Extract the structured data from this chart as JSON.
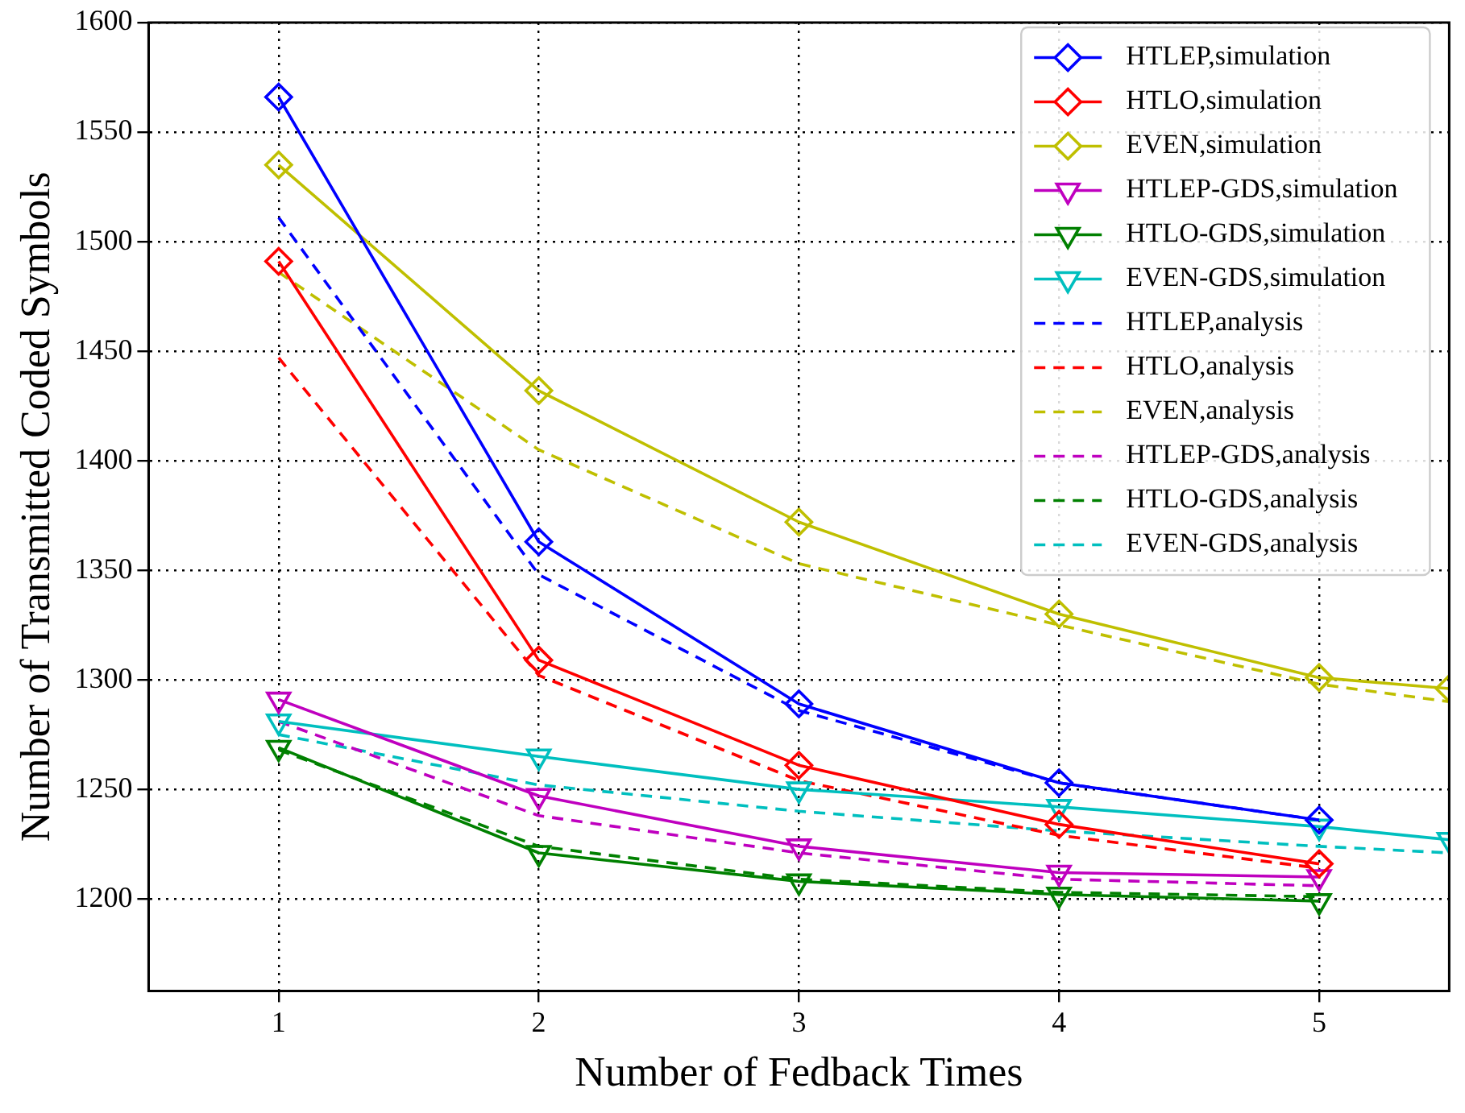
{
  "chart_data": {
    "type": "line",
    "xlabel": "Number of Fedback Times",
    "ylabel": "Number of Transmitted Coded Symbols",
    "xlim": [
      0.5,
      5.5
    ],
    "xticks": [
      1,
      2,
      3,
      4,
      5
    ],
    "ylim": [
      1158,
      1600
    ],
    "yticks": [
      1200,
      1250,
      1300,
      1350,
      1400,
      1450,
      1500,
      1550,
      1600
    ],
    "grid": true,
    "legend": "top right",
    "x": [
      1,
      2,
      3,
      4,
      5
    ],
    "series": [
      {
        "name": "HTLEP,simulation",
        "color": "#0000ff",
        "marker": "diamond",
        "line_style": "solid",
        "values": [
          1566,
          1363,
          1289,
          1253,
          1236
        ]
      },
      {
        "name": "HTLO,simulation",
        "color": "#ff0000",
        "marker": "diamond",
        "line_style": "solid",
        "values": [
          1491,
          1309,
          1261,
          1234,
          1216
        ]
      },
      {
        "name": "EVEN,simulation",
        "color": "#bfbf00",
        "marker": "diamond",
        "line_style": "solid",
        "x": [
          1,
          2,
          3,
          4,
          5,
          5.5
        ],
        "values": [
          1535,
          1432,
          1372,
          1330,
          1301,
          1296
        ]
      },
      {
        "name": "HTLEP-GDS,simulation",
        "color": "#bf00bf",
        "marker": "triangle",
        "line_style": "solid",
        "values": [
          1291,
          1247,
          1224,
          1212,
          1210
        ]
      },
      {
        "name": "HTLO-GDS,simulation",
        "color": "#008000",
        "marker": "triangle",
        "line_style": "solid",
        "values": [
          1269,
          1221,
          1208,
          1202,
          1199
        ]
      },
      {
        "name": "EVEN-GDS,simulation",
        "color": "#00bfbf",
        "marker": "triangle",
        "line_style": "solid",
        "x": [
          1,
          2,
          3,
          4,
          5,
          5.5
        ],
        "values": [
          1281,
          1265,
          1250,
          1242,
          1233,
          1227
        ]
      },
      {
        "name": "HTLEP,analysis",
        "color": "#0000ff",
        "marker": "none",
        "line_style": "dashed",
        "values": [
          1511,
          1348,
          1286,
          1253,
          1236
        ]
      },
      {
        "name": "HTLO,analysis",
        "color": "#ff0000",
        "marker": "none",
        "line_style": "dashed",
        "values": [
          1447,
          1302,
          1254,
          1229,
          1214
        ]
      },
      {
        "name": "EVEN,analysis",
        "color": "#bfbf00",
        "marker": "none",
        "line_style": "dashed",
        "x": [
          1,
          2,
          3,
          4,
          5,
          5.5
        ],
        "values": [
          1486,
          1405,
          1353,
          1325,
          1298,
          1290
        ]
      },
      {
        "name": "HTLEP-GDS,analysis",
        "color": "#bf00bf",
        "marker": "none",
        "line_style": "dashed",
        "values": [
          1281,
          1238,
          1221,
          1209,
          1206
        ]
      },
      {
        "name": "HTLO-GDS,analysis",
        "color": "#008000",
        "marker": "none",
        "line_style": "dashed",
        "values": [
          1268,
          1224,
          1209,
          1203,
          1201
        ]
      },
      {
        "name": "EVEN-GDS,analysis",
        "color": "#00bfbf",
        "marker": "none",
        "line_style": "dashed",
        "x": [
          1,
          2,
          3,
          4,
          5,
          5.5
        ],
        "values": [
          1275,
          1252,
          1240,
          1231,
          1224,
          1221
        ]
      }
    ]
  }
}
